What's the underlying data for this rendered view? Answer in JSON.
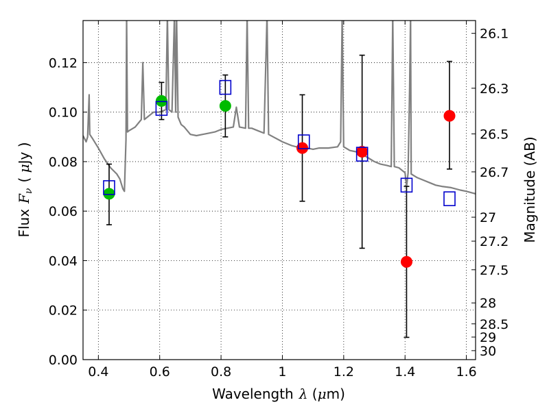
{
  "chart_data": {
    "type": "scatter",
    "title": "",
    "xlabel_parts": {
      "text": "Wavelength",
      "symbol": "λ",
      "unit_open": " (",
      "unit_mu": "μ",
      "unit_rest": "m)"
    },
    "ylabel_parts": {
      "text": "Flux",
      "symbol": "F",
      "sub": "ν",
      "unit_open": "( ",
      "unit_mu": "μ",
      "unit_rest": "Jy )"
    },
    "y2label": "Magnitude (AB)",
    "xlim": [
      0.35,
      1.63
    ],
    "ylim": [
      0.0,
      0.137
    ],
    "x_ticks": [
      0.4,
      0.6,
      0.8,
      1.0,
      1.2,
      1.4,
      1.6
    ],
    "x_tick_labels": [
      "0.4",
      "0.6",
      "0.8",
      "1",
      "1.2",
      "1.4",
      "1.6"
    ],
    "y_ticks": [
      0.0,
      0.02,
      0.04,
      0.06,
      0.08,
      0.1,
      0.12
    ],
    "y_tick_labels": [
      "0.00",
      "0.02",
      "0.04",
      "0.06",
      "0.08",
      "0.10",
      "0.12"
    ],
    "mag_ticks": [
      26.1,
      26.3,
      26.5,
      26.7,
      27,
      27.2,
      27.5,
      28,
      28.5,
      29,
      30
    ],
    "mag_tick_labels": [
      "26.1",
      "26.3",
      "26.5",
      "26.7",
      "27",
      "27.2",
      "27.5",
      "28",
      "28.5",
      "29",
      "30"
    ],
    "grid": true,
    "colors": {
      "green": "#00bb00",
      "red": "#ff0000",
      "model_box": "#0000cc",
      "sed": "#808080",
      "errorbar": "#000000"
    },
    "series": [
      {
        "name": "observed-green",
        "marker": "circle",
        "points": [
          {
            "x": 0.435,
            "y": 0.067,
            "err_lo": 0.0125,
            "err_hi": 0.012
          },
          {
            "x": 0.606,
            "y": 0.1045,
            "err_lo": 0.0075,
            "err_hi": 0.0075
          },
          {
            "x": 0.814,
            "y": 0.1025,
            "err_lo": 0.0125,
            "err_hi": 0.0125
          }
        ]
      },
      {
        "name": "observed-red",
        "marker": "circle",
        "points": [
          {
            "x": 1.065,
            "y": 0.0855,
            "err_lo": 0.0215,
            "err_hi": 0.0215
          },
          {
            "x": 1.26,
            "y": 0.084,
            "err_lo": 0.039,
            "err_hi": 0.039
          },
          {
            "x": 1.405,
            "y": 0.0395,
            "err_lo": 0.0305,
            "err_hi": 0.0305
          },
          {
            "x": 1.545,
            "y": 0.0985,
            "err_lo": 0.0215,
            "err_hi": 0.022
          }
        ]
      },
      {
        "name": "model-photometry",
        "marker": "square",
        "points": [
          {
            "x": 0.435,
            "y": 0.0695
          },
          {
            "x": 0.606,
            "y": 0.1015
          },
          {
            "x": 0.814,
            "y": 0.11
          },
          {
            "x": 1.07,
            "y": 0.088
          },
          {
            "x": 1.26,
            "y": 0.083
          },
          {
            "x": 1.405,
            "y": 0.0705
          },
          {
            "x": 1.545,
            "y": 0.065
          }
        ]
      }
    ],
    "sed_curve": [
      [
        0.35,
        0.0905
      ],
      [
        0.36,
        0.088
      ],
      [
        0.365,
        0.09
      ],
      [
        0.37,
        0.107
      ],
      [
        0.372,
        0.091
      ],
      [
        0.38,
        0.0895
      ],
      [
        0.4,
        0.0855
      ],
      [
        0.42,
        0.081
      ],
      [
        0.44,
        0.0775
      ],
      [
        0.46,
        0.075
      ],
      [
        0.47,
        0.073
      ],
      [
        0.48,
        0.069
      ],
      [
        0.485,
        0.068
      ],
      [
        0.49,
        0.089
      ],
      [
        0.492,
        0.139
      ],
      [
        0.495,
        0.092
      ],
      [
        0.5,
        0.0925
      ],
      [
        0.52,
        0.094
      ],
      [
        0.54,
        0.097
      ],
      [
        0.545,
        0.12
      ],
      [
        0.55,
        0.097
      ],
      [
        0.56,
        0.098
      ],
      [
        0.58,
        0.1
      ],
      [
        0.6,
        0.1
      ],
      [
        0.62,
        0.101
      ],
      [
        0.625,
        0.139
      ],
      [
        0.63,
        0.101
      ],
      [
        0.64,
        0.1
      ],
      [
        0.648,
        0.139
      ],
      [
        0.652,
        0.1
      ],
      [
        0.655,
        0.139
      ],
      [
        0.66,
        0.098
      ],
      [
        0.67,
        0.095
      ],
      [
        0.68,
        0.094
      ],
      [
        0.7,
        0.091
      ],
      [
        0.72,
        0.0905
      ],
      [
        0.74,
        0.091
      ],
      [
        0.76,
        0.0915
      ],
      [
        0.78,
        0.092
      ],
      [
        0.8,
        0.093
      ],
      [
        0.82,
        0.0935
      ],
      [
        0.84,
        0.094
      ],
      [
        0.85,
        0.102
      ],
      [
        0.86,
        0.094
      ],
      [
        0.88,
        0.0935
      ],
      [
        0.885,
        0.139
      ],
      [
        0.89,
        0.0935
      ],
      [
        0.9,
        0.0935
      ],
      [
        0.92,
        0.0925
      ],
      [
        0.94,
        0.0915
      ],
      [
        0.95,
        0.139
      ],
      [
        0.955,
        0.091
      ],
      [
        0.97,
        0.09
      ],
      [
        1.0,
        0.088
      ],
      [
        1.03,
        0.0865
      ],
      [
        1.06,
        0.0855
      ],
      [
        1.08,
        0.0855
      ],
      [
        1.1,
        0.085
      ],
      [
        1.12,
        0.0855
      ],
      [
        1.15,
        0.0855
      ],
      [
        1.18,
        0.086
      ],
      [
        1.19,
        0.088
      ],
      [
        1.195,
        0.139
      ],
      [
        1.2,
        0.086
      ],
      [
        1.22,
        0.0845
      ],
      [
        1.24,
        0.084
      ],
      [
        1.26,
        0.083
      ],
      [
        1.28,
        0.0815
      ],
      [
        1.3,
        0.08
      ],
      [
        1.32,
        0.079
      ],
      [
        1.34,
        0.0785
      ],
      [
        1.355,
        0.078
      ],
      [
        1.36,
        0.139
      ],
      [
        1.365,
        0.078
      ],
      [
        1.38,
        0.0775
      ],
      [
        1.4,
        0.0755
      ],
      [
        1.405,
        0.07
      ],
      [
        1.41,
        0.0755
      ],
      [
        1.415,
        0.11
      ],
      [
        1.418,
        0.139
      ],
      [
        1.42,
        0.075
      ],
      [
        1.44,
        0.0735
      ],
      [
        1.46,
        0.0725
      ],
      [
        1.48,
        0.0715
      ],
      [
        1.5,
        0.0705
      ],
      [
        1.52,
        0.07
      ],
      [
        1.55,
        0.0695
      ],
      [
        1.58,
        0.0685
      ],
      [
        1.6,
        0.068
      ],
      [
        1.63,
        0.067
      ]
    ]
  }
}
